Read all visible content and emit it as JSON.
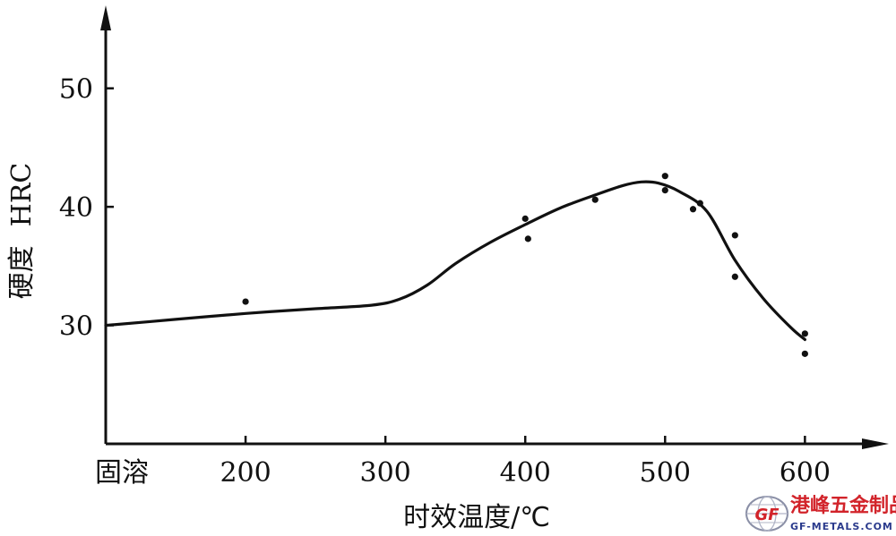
{
  "chart_data": {
    "type": "line",
    "xlabel": "时效温度/℃",
    "ylabel_cjk": "硬度",
    "ylabel_unit": "HRC",
    "x_tick_labels": [
      {
        "x": 100,
        "label": "固溶"
      },
      {
        "x": 200,
        "label": "200"
      },
      {
        "x": 300,
        "label": "300"
      },
      {
        "x": 400,
        "label": "400"
      },
      {
        "x": 500,
        "label": "500"
      },
      {
        "x": 600,
        "label": "600"
      }
    ],
    "y_ticks": [
      30,
      40,
      50
    ],
    "xlim": [
      100,
      660
    ],
    "ylim": [
      20,
      57
    ],
    "grid": false,
    "points": [
      {
        "x": 200,
        "y": 32.0
      },
      {
        "x": 400,
        "y": 39.0
      },
      {
        "x": 402,
        "y": 37.3
      },
      {
        "x": 450,
        "y": 40.6
      },
      {
        "x": 500,
        "y": 42.6
      },
      {
        "x": 500,
        "y": 41.4
      },
      {
        "x": 520,
        "y": 39.8
      },
      {
        "x": 525,
        "y": 40.3
      },
      {
        "x": 550,
        "y": 37.6
      },
      {
        "x": 550,
        "y": 34.1
      },
      {
        "x": 600,
        "y": 29.3
      },
      {
        "x": 600,
        "y": 27.6
      }
    ],
    "curve": [
      {
        "x": 100,
        "y": 30.0
      },
      {
        "x": 150,
        "y": 30.5
      },
      {
        "x": 200,
        "y": 31.0
      },
      {
        "x": 250,
        "y": 31.4
      },
      {
        "x": 290,
        "y": 31.7
      },
      {
        "x": 310,
        "y": 32.2
      },
      {
        "x": 330,
        "y": 33.4
      },
      {
        "x": 350,
        "y": 35.2
      },
      {
        "x": 375,
        "y": 37.0
      },
      {
        "x": 400,
        "y": 38.5
      },
      {
        "x": 425,
        "y": 39.9
      },
      {
        "x": 450,
        "y": 41.0
      },
      {
        "x": 470,
        "y": 41.8
      },
      {
        "x": 483,
        "y": 42.1
      },
      {
        "x": 495,
        "y": 42.0
      },
      {
        "x": 510,
        "y": 41.3
      },
      {
        "x": 530,
        "y": 39.6
      },
      {
        "x": 550,
        "y": 35.5
      },
      {
        "x": 570,
        "y": 32.3
      },
      {
        "x": 590,
        "y": 29.8
      },
      {
        "x": 600,
        "y": 28.8
      }
    ]
  },
  "watermark": {
    "cn": "港峰五金制品",
    "en": "GF-METALS.COM",
    "mark": "GF"
  }
}
